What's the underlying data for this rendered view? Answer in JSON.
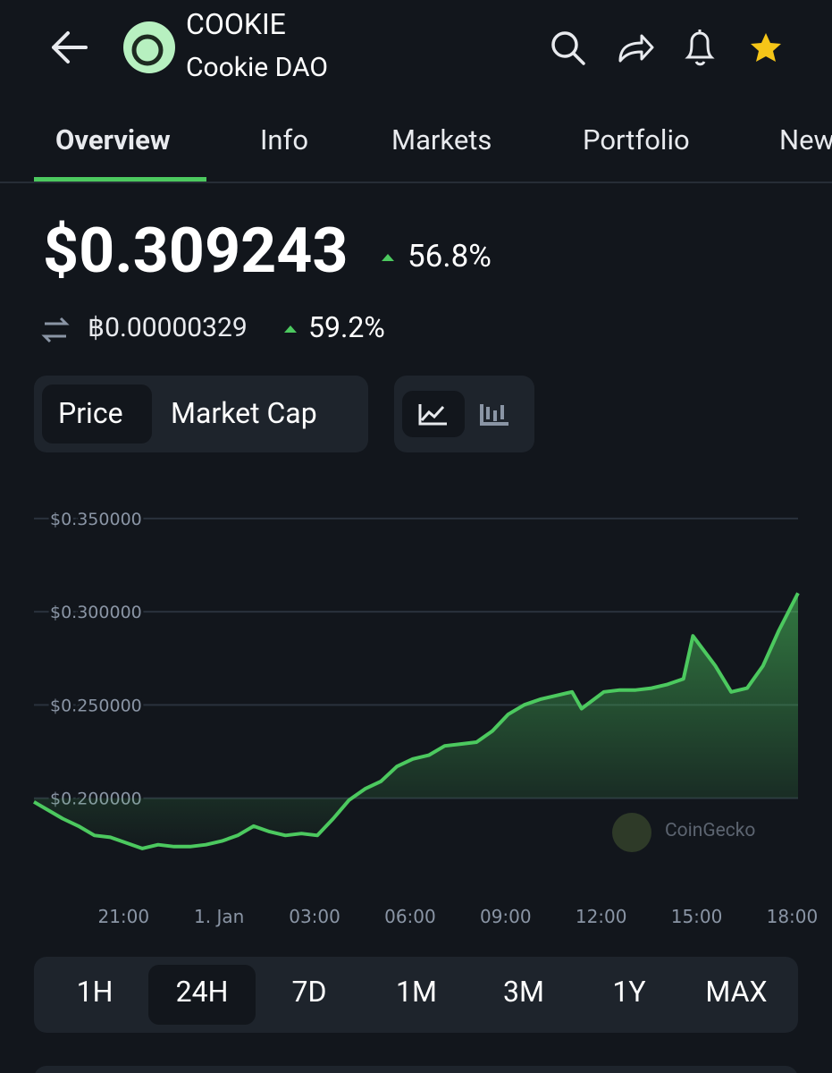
{
  "header": {
    "ticker": "COOKIE",
    "name": "Cookie DAO"
  },
  "tabs": [
    "Overview",
    "Info",
    "Markets",
    "Portfolio",
    "New"
  ],
  "price": {
    "usd": "$0.309243",
    "usd_change": "56.8%",
    "btc": "฿0.00000329",
    "btc_change": "59.2%"
  },
  "toggles": [
    "Price",
    "Market Cap"
  ],
  "watermark": "CoinGecko",
  "ranges": [
    "1H",
    "24H",
    "7D",
    "1M",
    "3M",
    "1Y",
    "MAX"
  ],
  "chart_data": {
    "type": "line",
    "color": "#4cc95f",
    "grid": true,
    "xlim": [
      -5.9,
      18.1
    ],
    "ylim": [
      0.16,
      0.36
    ],
    "yticks": [
      {
        "value": 0.35,
        "label": "$0.350000"
      },
      {
        "value": 0.3,
        "label": "$0.300000"
      },
      {
        "value": 0.25,
        "label": "$0.250000"
      },
      {
        "value": 0.2,
        "label": "$0.200000"
      }
    ],
    "xticks": [
      {
        "value": -3,
        "label": "21:00"
      },
      {
        "value": 0,
        "label": "1. Jan"
      },
      {
        "value": 3,
        "label": "03:00"
      },
      {
        "value": 6,
        "label": "06:00"
      },
      {
        "value": 9,
        "label": "09:00"
      },
      {
        "value": 12,
        "label": "12:00"
      },
      {
        "value": 15,
        "label": "15:00"
      },
      {
        "value": 18,
        "label": "18:00"
      }
    ],
    "x": [
      -5.9,
      -5.5,
      -5,
      -4.5,
      -4,
      -3.5,
      -3,
      -2.5,
      -2,
      -1.5,
      -1,
      -0.5,
      0,
      0.5,
      1,
      1.5,
      2,
      2.5,
      3,
      3.5,
      4,
      4.5,
      5,
      5.5,
      6,
      6.5,
      7,
      7.5,
      8,
      8.5,
      9,
      9.5,
      10,
      10.5,
      11,
      11.3,
      12,
      12.5,
      13,
      13.5,
      14,
      14.5,
      14.8,
      15.5,
      16,
      16.5,
      17,
      17.5,
      18.1
    ],
    "values": [
      0.198,
      0.194,
      0.189,
      0.185,
      0.18,
      0.179,
      0.176,
      0.173,
      0.175,
      0.174,
      0.174,
      0.175,
      0.177,
      0.18,
      0.185,
      0.182,
      0.18,
      0.181,
      0.18,
      0.189,
      0.199,
      0.205,
      0.209,
      0.217,
      0.221,
      0.223,
      0.228,
      0.229,
      0.23,
      0.236,
      0.245,
      0.25,
      0.253,
      0.255,
      0.257,
      0.248,
      0.257,
      0.258,
      0.258,
      0.259,
      0.261,
      0.264,
      0.287,
      0.271,
      0.257,
      0.259,
      0.271,
      0.29,
      0.31
    ]
  }
}
